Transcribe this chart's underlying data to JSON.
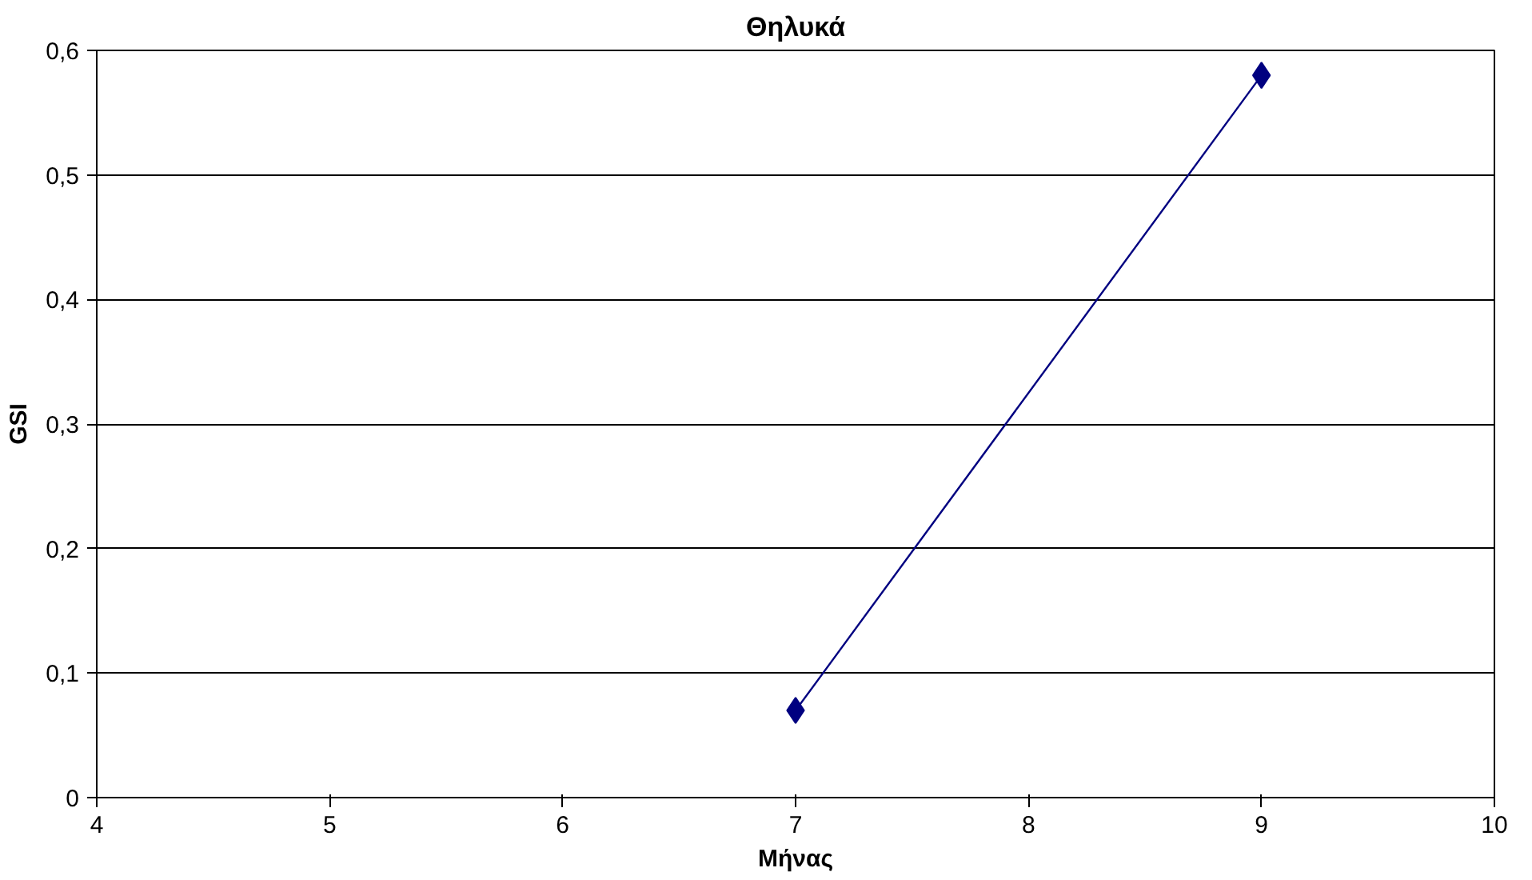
{
  "chart_data": {
    "type": "line",
    "title": "Θηλυκά",
    "xlabel": "Μήνας",
    "ylabel": "GSI",
    "x": [
      7,
      9
    ],
    "series": [
      {
        "color": "#000080",
        "values": [
          0.07,
          0.58
        ]
      }
    ],
    "xlim": [
      4,
      10
    ],
    "xticks": [
      4,
      5,
      6,
      7,
      8,
      9,
      10
    ],
    "ylim": [
      0,
      0.6
    ],
    "yticks": [
      0,
      {
        "value": 0.1,
        "label": "0,1"
      },
      {
        "value": 0.2,
        "label": "0,2"
      },
      {
        "value": 0.3,
        "label": "0,3"
      },
      {
        "value": 0.4,
        "label": "0,4"
      },
      {
        "value": 0.5,
        "label": "0,5"
      },
      {
        "value": 0.6,
        "label": "0,6"
      }
    ],
    "grid": "y",
    "marker": "diamond",
    "line_style": "solid"
  }
}
